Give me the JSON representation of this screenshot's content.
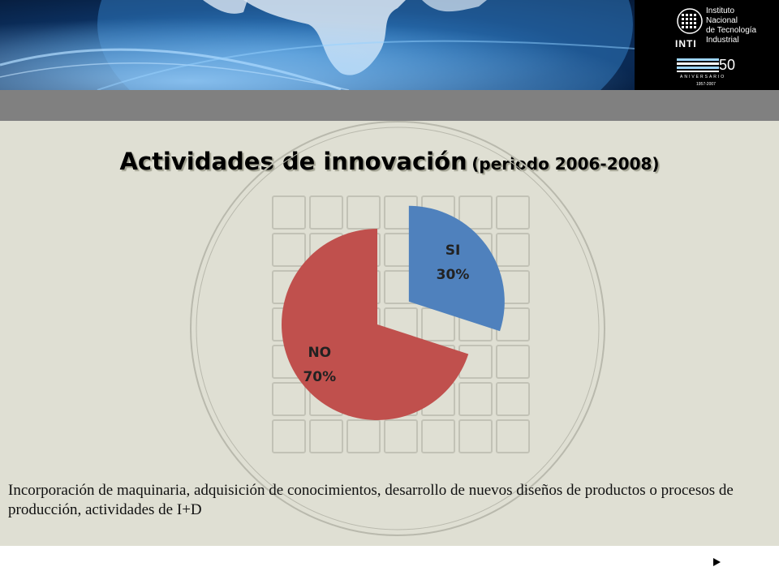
{
  "header": {
    "logo": {
      "brand": "INTI",
      "name_lines": [
        "Instituto",
        "Nacional",
        "de Tecnología",
        "Industrial"
      ],
      "anniversary_number": "50",
      "anniversary_word": "ANIVERSARIO",
      "anniversary_years": "1957-2007"
    }
  },
  "slide": {
    "title_main": "Actividades de innovación",
    "title_sub": "(periodo 2006-2008)",
    "caption": "Incorporación de maquinaria, adquisición de conocimientos, desarrollo de nuevos diseños de productos o procesos de producción, actividades de I+D"
  },
  "chart_data": {
    "type": "pie",
    "categories": [
      "SI",
      "NO"
    ],
    "values": [
      30,
      70
    ],
    "labels": [
      "30%",
      "70%"
    ],
    "colors": [
      "#4f81bd",
      "#c0504d"
    ],
    "exploded": "SI",
    "title": "",
    "legend": "none"
  },
  "nav": {
    "next_icon": "play-arrow-icon"
  }
}
